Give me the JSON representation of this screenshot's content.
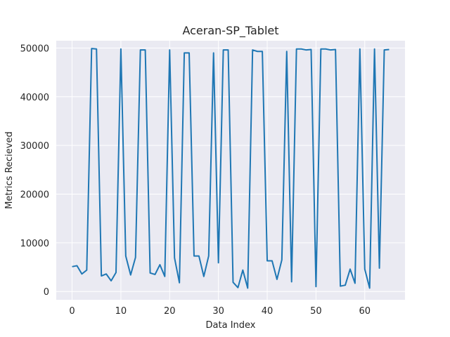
{
  "chart_data": {
    "type": "line",
    "title": "Aceran-SP_Tablet",
    "xlabel": "Data Index",
    "ylabel": "Metrics Recieved",
    "xlim": [
      -3.25,
      68.25
    ],
    "ylim": [
      -1700,
      51500
    ],
    "x_ticks": [
      0,
      10,
      20,
      30,
      40,
      50,
      60
    ],
    "y_ticks": [
      0,
      10000,
      20000,
      30000,
      40000,
      50000
    ],
    "grid": true,
    "series_color": "#1f77b4",
    "background_color": "#eaeaf2",
    "x": [
      0,
      1,
      2,
      3,
      4,
      5,
      6,
      7,
      8,
      9,
      10,
      11,
      12,
      13,
      14,
      15,
      16,
      17,
      18,
      19,
      20,
      21,
      22,
      23,
      24,
      25,
      26,
      27,
      28,
      29,
      30,
      31,
      32,
      33,
      34,
      35,
      36,
      37,
      38,
      39,
      40,
      41,
      42,
      43,
      44,
      45,
      46,
      47,
      48,
      49,
      50,
      51,
      52,
      53,
      54,
      55,
      56,
      57,
      58,
      59,
      60,
      61,
      62,
      63,
      64,
      65
    ],
    "values": [
      5100,
      5300,
      3600,
      4400,
      49900,
      49800,
      3200,
      3600,
      2200,
      3900,
      49800,
      7300,
      3400,
      7000,
      49600,
      49600,
      3800,
      3500,
      5500,
      3100,
      49600,
      6900,
      1800,
      49000,
      49000,
      7300,
      7300,
      3100,
      7300,
      49000,
      5900,
      49600,
      49600,
      1900,
      800,
      4400,
      700,
      49600,
      49300,
      49300,
      6300,
      6300,
      2500,
      6500,
      49300,
      2000,
      49800,
      49800,
      49600,
      49700,
      1000,
      49800,
      49800,
      49600,
      49700,
      1100,
      1300,
      4600,
      1700,
      49800,
      4600,
      700,
      49800,
      4800,
      49600,
      49700
    ]
  }
}
